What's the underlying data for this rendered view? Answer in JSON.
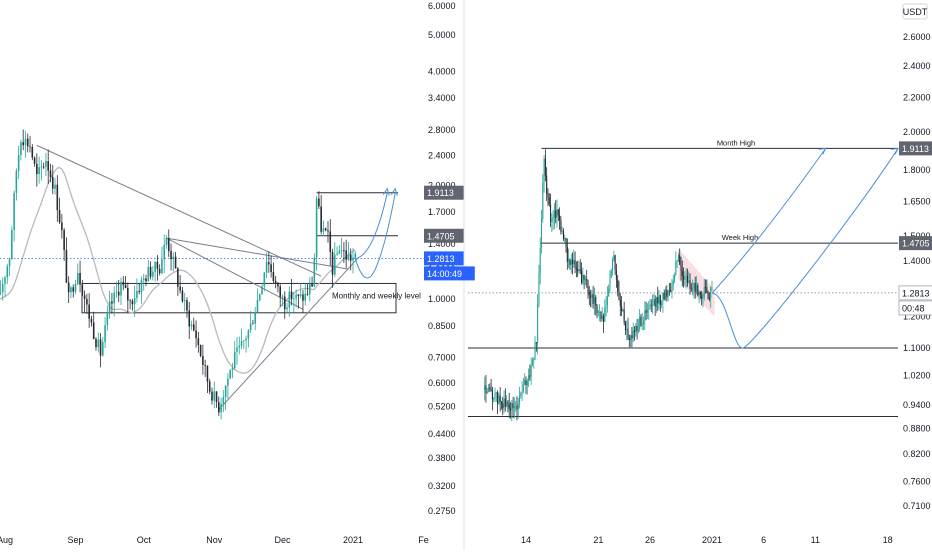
{
  "colors": {
    "candle_up": "#26a69a",
    "candle_down": "#262b33",
    "level_line": "#2a2e39",
    "trendline": "#7a7f8a",
    "moving_average": "#b7b9bf",
    "projection": "#4a90d9",
    "current_price_line": "#2962ff",
    "badge_gray": "#60656f",
    "badge_blue": "#2962ff",
    "wedge_fill": "#f7c8cf",
    "axis_text": "#131722"
  },
  "chart_data": [
    {
      "type": "candlestick",
      "currency": "USDT",
      "y_scale": "log",
      "x_tick_labels": [
        "Aug",
        "Sep",
        "Oct",
        "Nov",
        "Dec",
        "2021",
        "Fe"
      ],
      "y_tick_labels": [
        "6.0000",
        "5.0000",
        "4.0000",
        "3.4000",
        "2.8000",
        "2.4000",
        "2.0000",
        "1.7000",
        "1.4000",
        "1.2000",
        "1.0000",
        "0.8500",
        "0.7000",
        "0.6000",
        "0.5200",
        "0.4400",
        "0.3800",
        "0.3200",
        "0.2750"
      ],
      "price_badges": [
        {
          "label": "1.9113",
          "color": "gray"
        },
        {
          "label": "1.4705",
          "color": "gray"
        },
        {
          "label": "1.2813",
          "color": "blue"
        },
        {
          "label": "14:00:49",
          "color": "blue"
        }
      ],
      "annotations": [
        "Monthly and weekly level"
      ],
      "levels": [
        1.9113,
        1.4705
      ],
      "zone": {
        "low": 0.92,
        "high": 1.1
      },
      "close_path": [
        {
          "x": "Jul 29",
          "y": 1.0
        },
        {
          "x": "Aug 3",
          "y": 1.3
        },
        {
          "x": "Aug 6",
          "y": 2.2
        },
        {
          "x": "Aug 8",
          "y": 2.7
        },
        {
          "x": "Aug 12",
          "y": 2.55
        },
        {
          "x": "Aug 15",
          "y": 2.1
        },
        {
          "x": "Aug 19",
          "y": 2.35
        },
        {
          "x": "Aug 23",
          "y": 1.95
        },
        {
          "x": "Aug 26",
          "y": 1.5
        },
        {
          "x": "Aug 29",
          "y": 1.0
        },
        {
          "x": "Sep 2",
          "y": 1.2
        },
        {
          "x": "Sep 6",
          "y": 0.95
        },
        {
          "x": "Sep 10",
          "y": 0.78
        },
        {
          "x": "Sep 12",
          "y": 0.72
        },
        {
          "x": "Sep 16",
          "y": 0.95
        },
        {
          "x": "Sep 21",
          "y": 1.1
        },
        {
          "x": "Sep 25",
          "y": 0.98
        },
        {
          "x": "Sep 29",
          "y": 1.08
        },
        {
          "x": "Oct 3",
          "y": 1.18
        },
        {
          "x": "Oct 8",
          "y": 1.22
        },
        {
          "x": "Oct 11",
          "y": 1.45
        },
        {
          "x": "Oct 14",
          "y": 1.25
        },
        {
          "x": "Oct 17",
          "y": 1.05
        },
        {
          "x": "Oct 21",
          "y": 0.88
        },
        {
          "x": "Oct 24",
          "y": 0.8
        },
        {
          "x": "Oct 27",
          "y": 0.68
        },
        {
          "x": "Oct 30",
          "y": 0.58
        },
        {
          "x": "Nov 3",
          "y": 0.52
        },
        {
          "x": "Nov 7",
          "y": 0.62
        },
        {
          "x": "Nov 10",
          "y": 0.7
        },
        {
          "x": "Nov 13",
          "y": 0.75
        },
        {
          "x": "Nov 17",
          "y": 0.85
        },
        {
          "x": "Nov 21",
          "y": 1.05
        },
        {
          "x": "Nov 24",
          "y": 1.28
        },
        {
          "x": "Nov 26",
          "y": 1.2
        },
        {
          "x": "Nov 29",
          "y": 1.05
        },
        {
          "x": "Dec 2",
          "y": 0.98
        },
        {
          "x": "Dec 5",
          "y": 1.02
        },
        {
          "x": "Dec 8",
          "y": 1.0
        },
        {
          "x": "Dec 11",
          "y": 1.02
        },
        {
          "x": "Dec 14",
          "y": 1.1
        },
        {
          "x": "Dec 15",
          "y": 1.3
        },
        {
          "x": "Dec 16",
          "y": 1.85
        },
        {
          "x": "Dec 18",
          "y": 1.55
        },
        {
          "x": "Dec 21",
          "y": 1.45
        },
        {
          "x": "Dec 23",
          "y": 1.2
        },
        {
          "x": "Dec 26",
          "y": 1.38
        },
        {
          "x": "Dec 29",
          "y": 1.3
        },
        {
          "x": "Jan 2",
          "y": 1.28
        }
      ]
    },
    {
      "type": "candlestick",
      "currency": "USDT",
      "y_scale": "log",
      "x_tick_labels": [
        "14",
        "21",
        "26",
        "2021",
        "6",
        "11",
        "18"
      ],
      "y_tick_labels": [
        "2.6000",
        "2.4000",
        "2.2000",
        "2.0000",
        "1.8000",
        "1.6500",
        "1.5000",
        "1.4000",
        "1.2000",
        "1.1000",
        "1.0200",
        "0.9400",
        "0.8800",
        "0.8200",
        "0.7600",
        "0.7100"
      ],
      "price_badges": [
        {
          "label": "1.9113",
          "color": "gray"
        },
        {
          "label": "1.4705",
          "color": "gray"
        },
        {
          "label": "1.2813",
          "color": "white"
        },
        {
          "label": "00:48",
          "color": "white"
        }
      ],
      "annotations": [
        "Month High",
        "Week High"
      ],
      "levels": [
        1.9113,
        1.4705,
        1.1,
        0.91
      ],
      "close_path": [
        {
          "x": "Dec 10",
          "y": 0.98
        },
        {
          "x": "Dec 11",
          "y": 0.96
        },
        {
          "x": "Dec 12",
          "y": 0.94
        },
        {
          "x": "Dec 13",
          "y": 0.93
        },
        {
          "x": "Dec 13 12:00",
          "y": 0.97
        },
        {
          "x": "Dec 14",
          "y": 1.0
        },
        {
          "x": "Dec 14 12:00",
          "y": 1.04
        },
        {
          "x": "Dec 15",
          "y": 1.12
        },
        {
          "x": "Dec 15 06:00",
          "y": 1.35
        },
        {
          "x": "Dec 15 12:00",
          "y": 1.6
        },
        {
          "x": "Dec 15 18:00",
          "y": 1.88
        },
        {
          "x": "Dec 16",
          "y": 1.7
        },
        {
          "x": "Dec 16 12:00",
          "y": 1.55
        },
        {
          "x": "Dec 17",
          "y": 1.62
        },
        {
          "x": "Dec 18",
          "y": 1.42
        },
        {
          "x": "Dec 19",
          "y": 1.36
        },
        {
          "x": "Dec 20",
          "y": 1.3
        },
        {
          "x": "Dec 21",
          "y": 1.22
        },
        {
          "x": "Dec 21 12:00",
          "y": 1.18
        },
        {
          "x": "Dec 22",
          "y": 1.3
        },
        {
          "x": "Dec 22 12:00",
          "y": 1.42
        },
        {
          "x": "Dec 23",
          "y": 1.25
        },
        {
          "x": "Dec 24",
          "y": 1.13
        },
        {
          "x": "Dec 25",
          "y": 1.18
        },
        {
          "x": "Dec 26",
          "y": 1.23
        },
        {
          "x": "Dec 27",
          "y": 1.26
        },
        {
          "x": "Dec 28",
          "y": 1.3
        },
        {
          "x": "Dec 28 18:00",
          "y": 1.42
        },
        {
          "x": "Dec 29",
          "y": 1.36
        },
        {
          "x": "Dec 30",
          "y": 1.3
        },
        {
          "x": "Dec 31",
          "y": 1.28
        },
        {
          "x": "Jan 1",
          "y": 1.28
        }
      ],
      "projections": [
        [
          {
            "x": "Jan 1",
            "y": 1.28
          },
          {
            "x": "Jan 6",
            "y": 1.5
          },
          {
            "x": "Jan 12",
            "y": 1.9113
          }
        ],
        [
          {
            "x": "Jan 1",
            "y": 1.28
          },
          {
            "x": "Jan 4",
            "y": 1.1
          },
          {
            "x": "Jan 8",
            "y": 1.12
          },
          {
            "x": "Jan 15",
            "y": 1.6
          },
          {
            "x": "Jan 19",
            "y": 1.9113
          }
        ]
      ]
    }
  ]
}
